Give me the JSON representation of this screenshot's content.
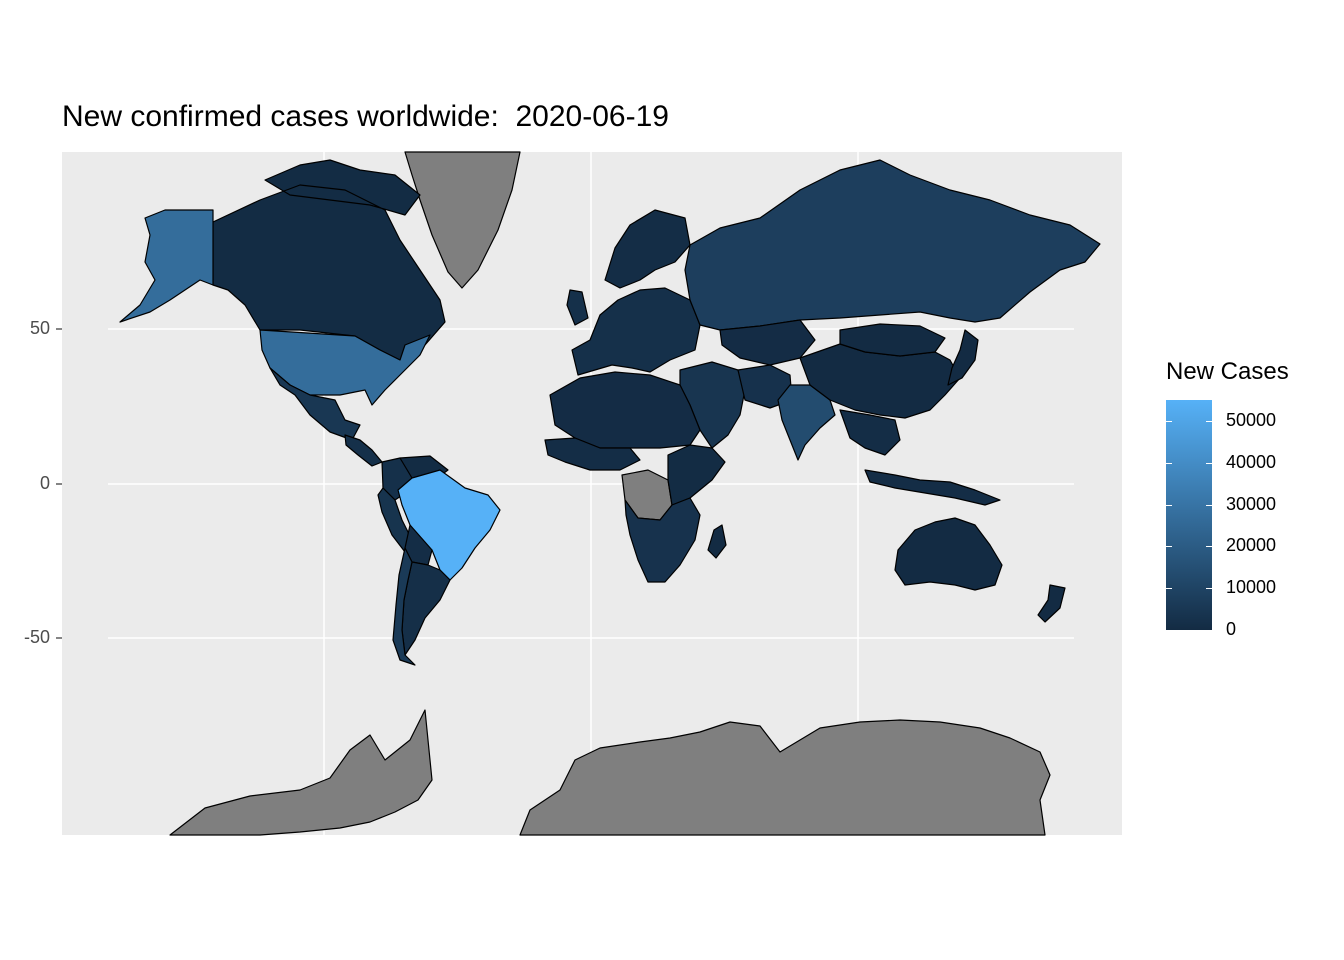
{
  "title": "New confirmed cases worldwide:  2020-06-19",
  "y_ticks": [
    "50",
    "0",
    "-50"
  ],
  "legend": {
    "title": "New Cases",
    "ticks": [
      "50000",
      "40000",
      "30000",
      "20000",
      "10000",
      "0"
    ],
    "low_color": "#132b43",
    "high_color": "#56b1f7",
    "range": [
      0,
      55000
    ]
  },
  "colors": {
    "panel_bg": "#ebebeb",
    "grid": "#ffffff",
    "missing": "#7f7f7f",
    "country_default": "#1a3651",
    "border": "#000000"
  },
  "regions": [
    {
      "name": "Greenland",
      "value": null
    },
    {
      "name": "Antarctica",
      "value": null
    },
    {
      "name": "Canada",
      "value": 400
    },
    {
      "name": "Alaska",
      "value": 27000
    },
    {
      "name": "United States",
      "value": 27000
    },
    {
      "name": "Mexico",
      "value": 5000
    },
    {
      "name": "Central America",
      "value": 2000
    },
    {
      "name": "Colombia",
      "value": 2000
    },
    {
      "name": "Venezuela",
      "value": 300
    },
    {
      "name": "Peru",
      "value": 3500
    },
    {
      "name": "Brazil",
      "value": 55000
    },
    {
      "name": "Bolivia",
      "value": 1000
    },
    {
      "name": "Argentina",
      "value": 1600
    },
    {
      "name": "Chile",
      "value": 6000
    },
    {
      "name": "Europe",
      "value": 2000
    },
    {
      "name": "Scandinavia",
      "value": 1000
    },
    {
      "name": "Russia",
      "value": 7900
    },
    {
      "name": "Kazakhstan",
      "value": 500
    },
    {
      "name": "Middle East",
      "value": 4000
    },
    {
      "name": "Iran",
      "value": 2600
    },
    {
      "name": "India",
      "value": 13500
    },
    {
      "name": "China",
      "value": 30
    },
    {
      "name": "Mongolia",
      "value": 0
    },
    {
      "name": "Southeast Asia",
      "value": 1000
    },
    {
      "name": "Indonesia",
      "value": 1000
    },
    {
      "name": "Japan",
      "value": 70
    },
    {
      "name": "North Africa",
      "value": 500
    },
    {
      "name": "West Africa",
      "value": 800
    },
    {
      "name": "DR Congo",
      "value": null
    },
    {
      "name": "East Africa",
      "value": 300
    },
    {
      "name": "Southern Africa",
      "value": 3000
    },
    {
      "name": "Madagascar",
      "value": 50
    },
    {
      "name": "Australia",
      "value": 20
    },
    {
      "name": "New Zealand",
      "value": 0
    }
  ]
}
